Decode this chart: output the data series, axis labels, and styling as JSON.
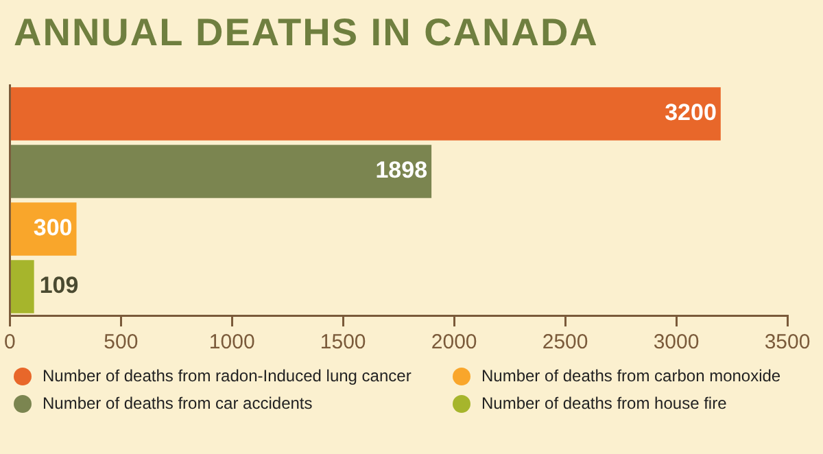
{
  "chart_data": {
    "type": "bar",
    "orientation": "horizontal",
    "stacked": true,
    "title": "ANNUAL DEATHS IN CANADA",
    "categories": [
      null,
      null,
      null,
      null
    ],
    "series": [
      {
        "name": "Number of deaths from radon-Induced lung cancer",
        "color": "#e8672a",
        "values": [
          3200,
          null,
          null,
          null
        ]
      },
      {
        "name": "Number of deaths from car accidents",
        "color": "#7b8550",
        "values": [
          null,
          1898,
          null,
          null
        ]
      },
      {
        "name": "Number of deaths from carbon monoxide",
        "color": "#f9a62b",
        "values": [
          null,
          null,
          300,
          null
        ]
      },
      {
        "name": "Number of deaths from house fire",
        "color": "#a6b52c",
        "values": [
          null,
          null,
          null,
          109
        ]
      }
    ],
    "xlim": [
      0,
      3500
    ],
    "xticks": [
      0,
      500,
      1000,
      1500,
      2000,
      2500,
      3000,
      3500
    ],
    "data_labels": true,
    "grid": false,
    "legend": "bottom",
    "tick_labels": "x"
  }
}
